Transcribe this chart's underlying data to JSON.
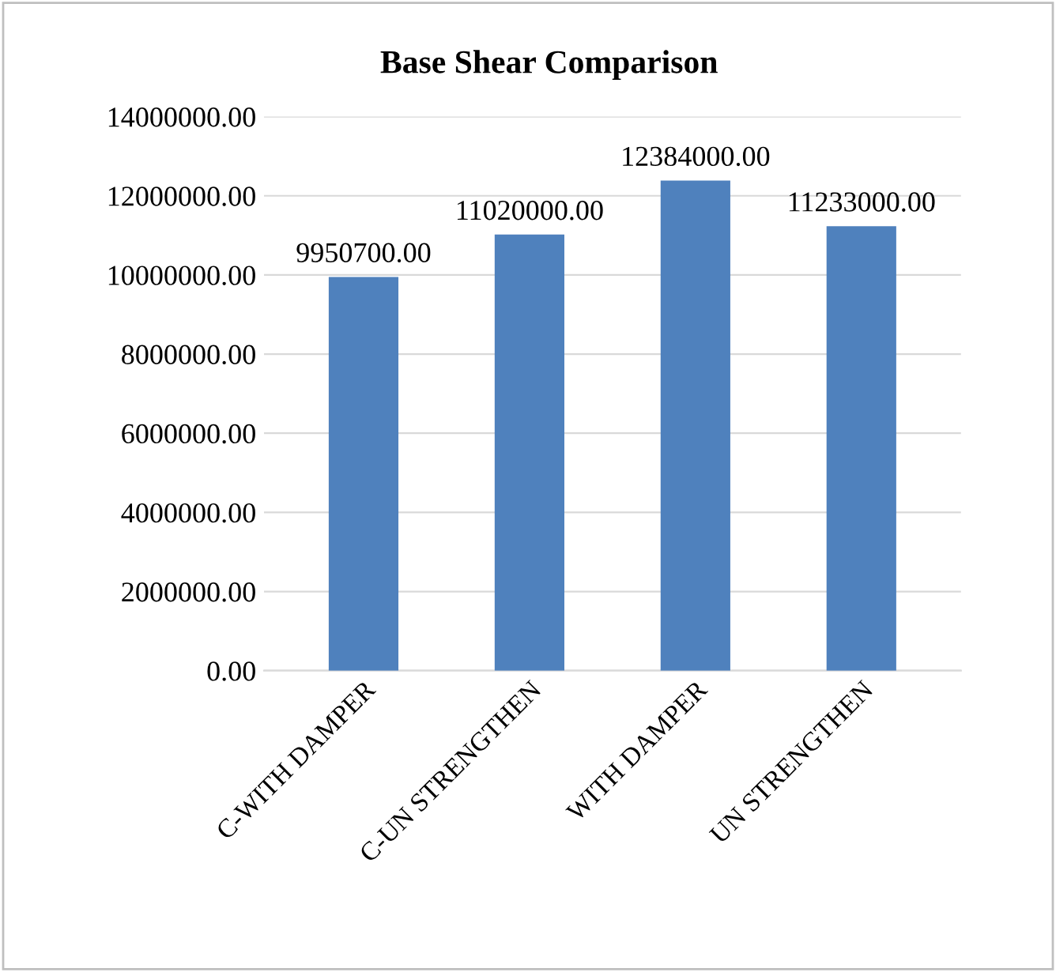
{
  "chart_data": {
    "type": "bar",
    "title": "Base Shear Comparison",
    "categories": [
      "C-WITH DAMPER",
      "C-UN STRENGTHEN",
      "WITH DAMPER",
      "UN STRENGTHEN"
    ],
    "values": [
      9950700,
      11020000,
      12384000,
      11233000
    ],
    "value_labels": [
      "9950700.00",
      "11020000.00",
      "12384000.00",
      "11233000.00"
    ],
    "color": "#4f81bd",
    "ylim": [
      0,
      14000000
    ],
    "yticks": [
      {
        "value": 0,
        "label": "0.00"
      },
      {
        "value": 2000000,
        "label": "2000000.00"
      },
      {
        "value": 4000000,
        "label": "4000000.00"
      },
      {
        "value": 6000000,
        "label": "6000000.00"
      },
      {
        "value": 8000000,
        "label": "8000000.00"
      },
      {
        "value": 10000000,
        "label": "10000000.00"
      },
      {
        "value": 12000000,
        "label": "12000000.00"
      },
      {
        "value": 14000000,
        "label": "14000000.00"
      }
    ],
    "grid": "y"
  }
}
